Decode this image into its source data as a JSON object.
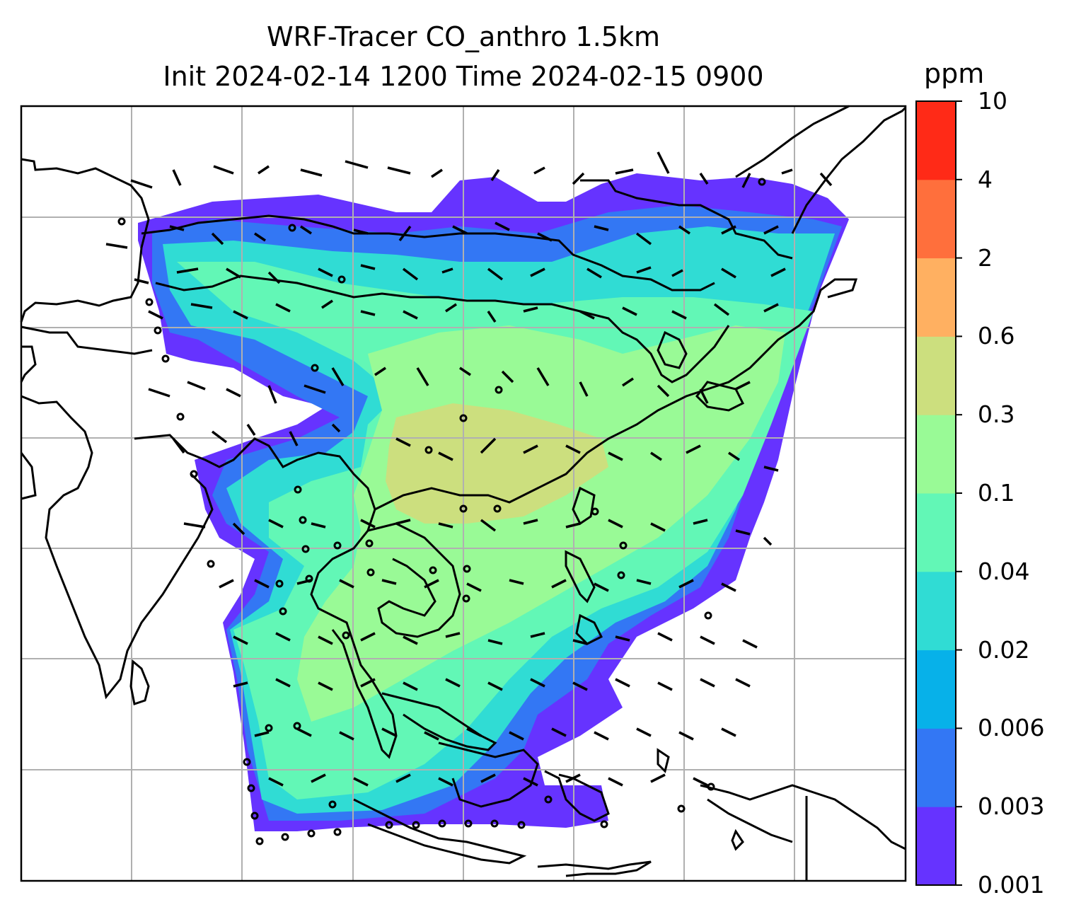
{
  "title": {
    "line1": "WRF-Tracer CO_anthro 1.5km",
    "line2": "Init 2024-02-14 1200 Time 2024-02-15 0900"
  },
  "colorbar": {
    "unit": "ppm",
    "ticks": [
      "0.001",
      "0.003",
      "0.006",
      "0.02",
      "0.04",
      "0.1",
      "0.3",
      "0.6",
      "2",
      "4",
      "10"
    ],
    "colors": [
      "#6633ff",
      "#3377f4",
      "#07b1e9",
      "#30dcd4",
      "#62f7b6",
      "#99fa96",
      "#ccdf7e",
      "#ffb061",
      "#ff6f3c",
      "#ff2a17"
    ]
  },
  "map": {
    "gridlines": true,
    "coastline_color": "#000000",
    "grid_color": "#b0b0b0"
  }
}
